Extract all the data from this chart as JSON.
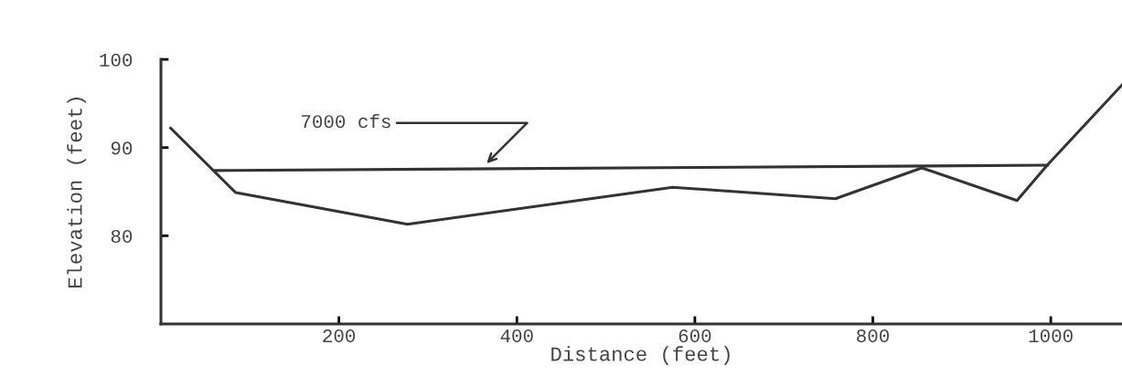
{
  "chart_data": {
    "type": "line",
    "xlabel": "Distance (feet)",
    "ylabel": "Elevation (feet)",
    "xlim": [
      0,
      1080
    ],
    "ylim": [
      70,
      100
    ],
    "xticks": [
      200,
      400,
      600,
      800,
      1000
    ],
    "yticks": [
      80,
      90,
      100
    ],
    "series": [
      {
        "color": "#333333",
        "x": [
          11,
          84,
          277,
          575,
          758,
          855,
          962,
          996,
          1080
        ],
        "values": [
          92.2,
          84.9,
          81.3,
          85.5,
          84.2,
          87.7,
          84.0,
          88.0,
          97.1
        ]
      },
      {
        "color": "#333333",
        "x": [
          61,
          996
        ],
        "values": [
          87.4,
          88.0
        ]
      }
    ],
    "annotations": [
      "7000 cfs"
    ],
    "grid": false,
    "legend": false,
    "marker": "none",
    "line_style": "solid"
  }
}
